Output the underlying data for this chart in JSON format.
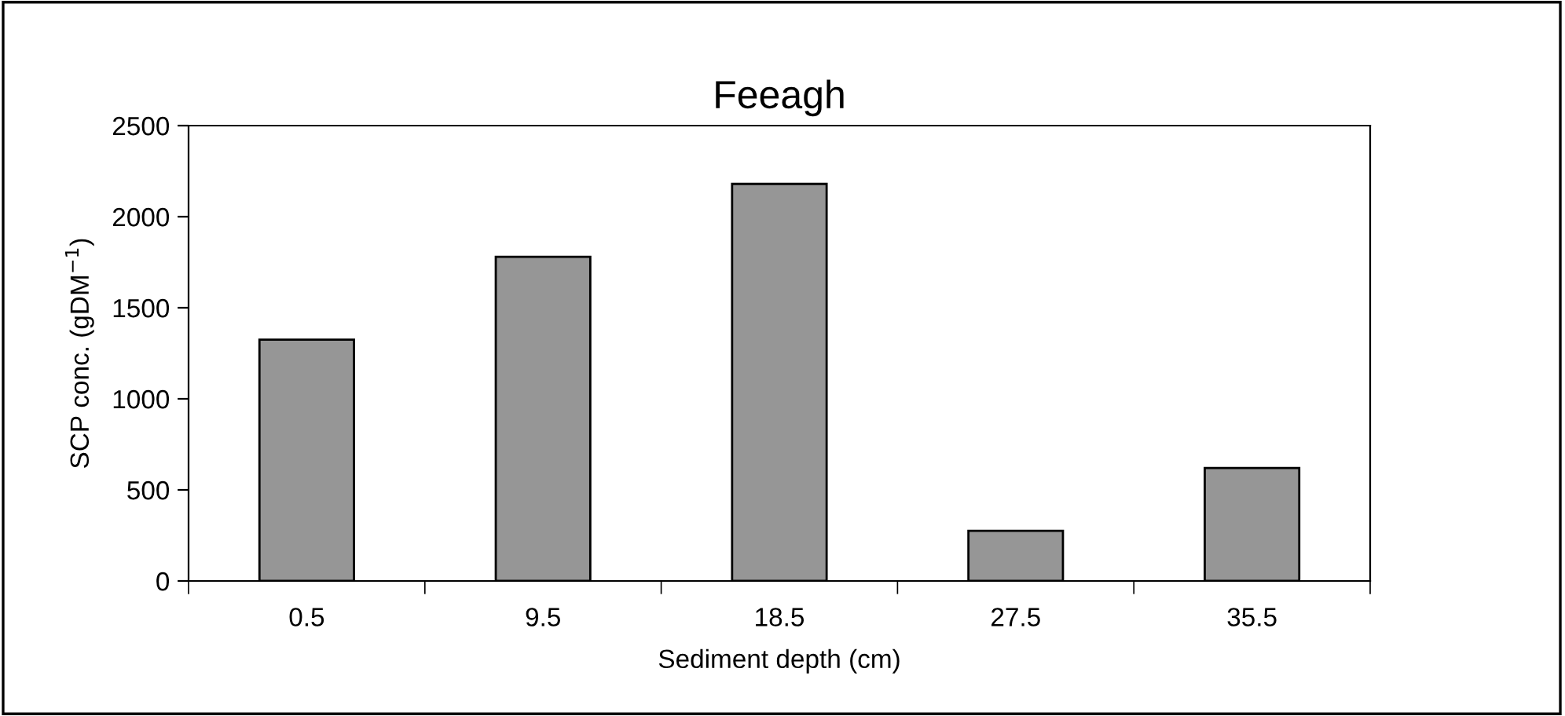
{
  "chart_data": {
    "type": "bar",
    "title": "Feeagh",
    "xlabel": "Sediment depth (cm)",
    "ylabel": "SCP conc. (gDM$^{−1}$)",
    "categories": [
      "0.5",
      "9.5",
      "18.5",
      "27.5",
      "35.5"
    ],
    "values": [
      1325,
      1780,
      2180,
      275,
      620
    ],
    "color": "#969696",
    "ylim": [
      0,
      2500
    ],
    "yticks": [
      0,
      500,
      1000,
      1500,
      2000,
      2500
    ],
    "grid": false
  }
}
